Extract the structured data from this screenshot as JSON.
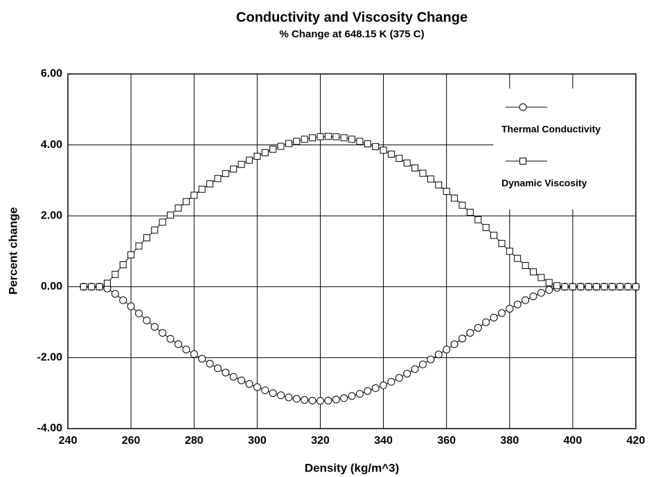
{
  "chart_data": {
    "type": "line",
    "title": "Conductivity and Viscosity Change",
    "subtitle": "% Change at 648.15 K (375 C)",
    "x_label": "Density (kg/m^3)",
    "y_label": "Percent change",
    "xlim": [
      240,
      420
    ],
    "ylim": [
      -4,
      6
    ],
    "xticks": [
      240,
      260,
      280,
      300,
      320,
      340,
      360,
      380,
      400,
      420
    ],
    "yticks": [
      {
        "value": -4,
        "label": "-4.00"
      },
      {
        "value": -2,
        "label": "-2.00"
      },
      {
        "value": 0,
        "label": "0.00"
      },
      {
        "value": 2,
        "label": "2.00"
      },
      {
        "value": 4,
        "label": "4.00"
      },
      {
        "value": 6,
        "label": "6.00"
      }
    ],
    "grid": true,
    "legend": "upper right",
    "x": [
      245,
      247.5,
      250,
      252.5,
      255,
      257.5,
      260,
      262.5,
      265,
      267.5,
      270,
      272.5,
      275,
      277.5,
      280,
      282.5,
      285,
      287.5,
      290,
      292.5,
      295,
      297.5,
      300,
      302.5,
      305,
      307.5,
      310,
      312.5,
      315,
      317.5,
      320,
      322.5,
      325,
      327.5,
      330,
      332.5,
      335,
      337.5,
      340,
      342.5,
      345,
      347.5,
      350,
      352.5,
      355,
      357.5,
      360,
      362.5,
      365,
      367.5,
      370,
      372.5,
      375,
      377.5,
      380,
      382.5,
      385,
      387.5,
      390,
      392.5,
      395,
      397.5,
      400,
      402.5,
      405,
      407.5,
      410,
      412.5,
      415,
      417.5,
      420
    ],
    "series": [
      {
        "name": "Thermal Conductivity",
        "color": "#000000",
        "marker": "circle",
        "values": [
          0,
          0,
          0,
          -0.05,
          -0.2,
          -0.38,
          -0.55,
          -0.75,
          -0.95,
          -1.13,
          -1.3,
          -1.47,
          -1.62,
          -1.77,
          -1.9,
          -2.03,
          -2.17,
          -2.3,
          -2.42,
          -2.54,
          -2.64,
          -2.74,
          -2.83,
          -2.92,
          -3.0,
          -3.06,
          -3.12,
          -3.16,
          -3.19,
          -3.21,
          -3.22,
          -3.21,
          -3.18,
          -3.14,
          -3.08,
          -3.02,
          -2.94,
          -2.86,
          -2.78,
          -2.68,
          -2.57,
          -2.45,
          -2.32,
          -2.19,
          -2.05,
          -1.91,
          -1.77,
          -1.62,
          -1.46,
          -1.3,
          -1.16,
          -1.0,
          -0.87,
          -0.74,
          -0.62,
          -0.5,
          -0.38,
          -0.27,
          -0.17,
          -0.09,
          -0.03,
          0,
          0,
          0,
          0,
          0,
          0,
          0,
          0,
          0,
          0
        ]
      },
      {
        "name": "Dynamic Viscosity",
        "color": "#000000",
        "marker": "square",
        "values": [
          0,
          0,
          0,
          0.1,
          0.35,
          0.62,
          0.9,
          1.15,
          1.38,
          1.6,
          1.82,
          2.02,
          2.22,
          2.4,
          2.58,
          2.75,
          2.9,
          3.05,
          3.19,
          3.32,
          3.45,
          3.57,
          3.68,
          3.78,
          3.88,
          3.96,
          4.04,
          4.1,
          4.16,
          4.2,
          4.23,
          4.24,
          4.23,
          4.2,
          4.16,
          4.1,
          4.03,
          3.95,
          3.85,
          3.74,
          3.62,
          3.49,
          3.35,
          3.2,
          3.04,
          2.87,
          2.69,
          2.5,
          2.3,
          2.1,
          1.89,
          1.67,
          1.45,
          1.22,
          1.0,
          0.8,
          0.6,
          0.42,
          0.26,
          0.12,
          0.03,
          0,
          0,
          0,
          0,
          0,
          0,
          0,
          0,
          0,
          0
        ]
      }
    ]
  }
}
